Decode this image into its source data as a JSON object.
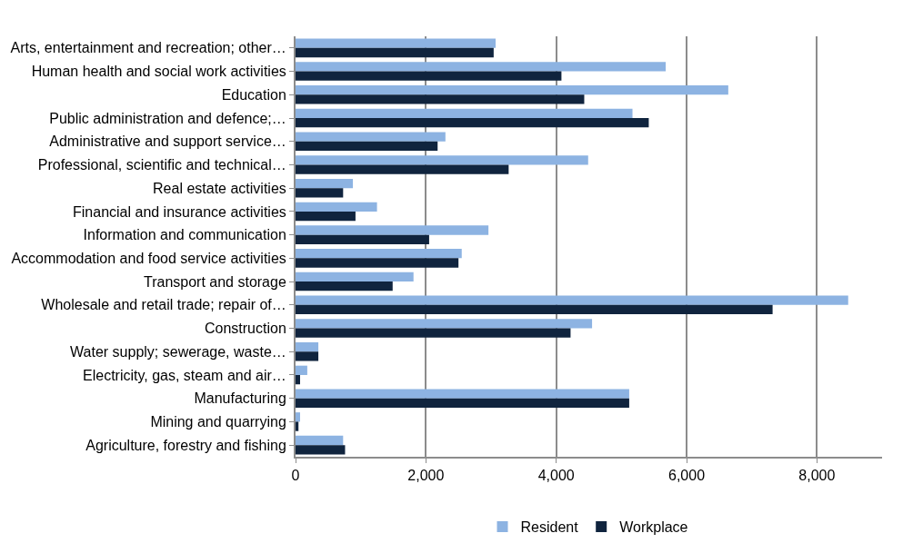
{
  "chart_data": {
    "type": "bar",
    "orientation": "horizontal",
    "categories": [
      "Arts, entertainment and recreation; other…",
      "Human health and social work activities",
      "Education",
      "Public administration and defence;…",
      "Administrative and support service…",
      "Professional, scientific and technical…",
      "Real estate activities",
      "Financial and insurance activities",
      "Information and communication",
      "Accommodation and food service activities",
      "Transport and storage",
      "Wholesale and retail trade; repair of…",
      "Construction",
      "Water supply; sewerage, waste…",
      "Electricity, gas, steam and air…",
      "Manufacturing",
      "Mining and quarrying",
      "Agriculture, forestry and fishing"
    ],
    "series": [
      {
        "name": "Resident",
        "color": "#8db3e2",
        "values": [
          3070,
          5680,
          6640,
          5170,
          2300,
          4490,
          880,
          1250,
          2960,
          2550,
          1810,
          8480,
          4550,
          350,
          180,
          5120,
          70,
          730
        ]
      },
      {
        "name": "Workplace",
        "color": "#10243e",
        "values": [
          3040,
          4080,
          4430,
          5420,
          2180,
          3270,
          730,
          920,
          2050,
          2500,
          1490,
          7320,
          4220,
          350,
          70,
          5120,
          45,
          760
        ]
      }
    ],
    "xlim": [
      0,
      9000
    ],
    "xticks": [
      {
        "value": 0,
        "label": "0"
      },
      {
        "value": 2000,
        "label": "2,000"
      },
      {
        "value": 4000,
        "label": "4,000"
      },
      {
        "value": 6000,
        "label": "6,000"
      },
      {
        "value": 8000,
        "label": "8,000"
      }
    ],
    "grid": "x",
    "legend": "bottom"
  }
}
